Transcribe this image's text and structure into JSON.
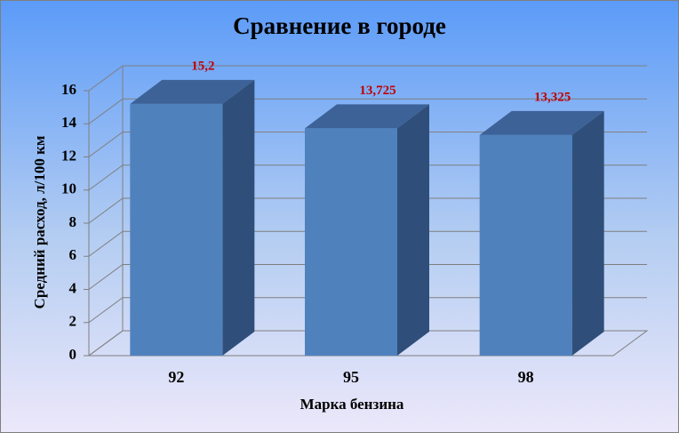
{
  "chart_data": {
    "type": "bar3d",
    "title": "Сравнение в городе",
    "x_label": "Марка бензина",
    "y_label": "Средний расход, л/100 км",
    "categories": [
      "92",
      "95",
      "98"
    ],
    "values": [
      15.2,
      13.725,
      13.325
    ],
    "value_labels": [
      "15,2",
      "13,725",
      "13,325"
    ],
    "color": "#4f81bd",
    "value_label_color": "#c00000",
    "ylim": [
      0,
      16
    ],
    "yticks": [
      0,
      2,
      4,
      6,
      8,
      10,
      12,
      14,
      16
    ],
    "grid": true
  }
}
